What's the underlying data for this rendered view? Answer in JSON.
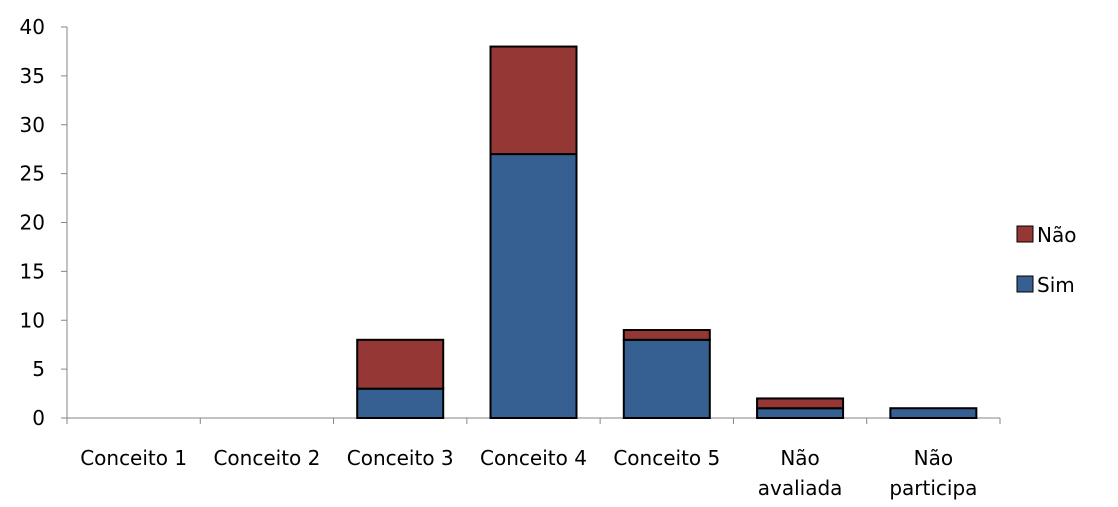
{
  "chart_data": {
    "type": "bar",
    "stacked": true,
    "categories": [
      [
        "Conceito 1"
      ],
      [
        "Conceito 2"
      ],
      [
        "Conceito 3"
      ],
      [
        "Conceito 4"
      ],
      [
        "Conceito 5"
      ],
      [
        "Não",
        "avaliada"
      ],
      [
        "Não",
        "participa"
      ]
    ],
    "series": [
      {
        "name": "Sim",
        "color": "#376092",
        "values": [
          0,
          0,
          3,
          27,
          8,
          1,
          1
        ]
      },
      {
        "name": "Não",
        "color": "#953735",
        "values": [
          0,
          0,
          5,
          11,
          1,
          1,
          0
        ]
      }
    ],
    "ylim": [
      0,
      40
    ],
    "yticks": [
      0,
      5,
      10,
      15,
      20,
      25,
      30,
      35,
      40
    ],
    "grid": false,
    "legend_position": "right"
  }
}
